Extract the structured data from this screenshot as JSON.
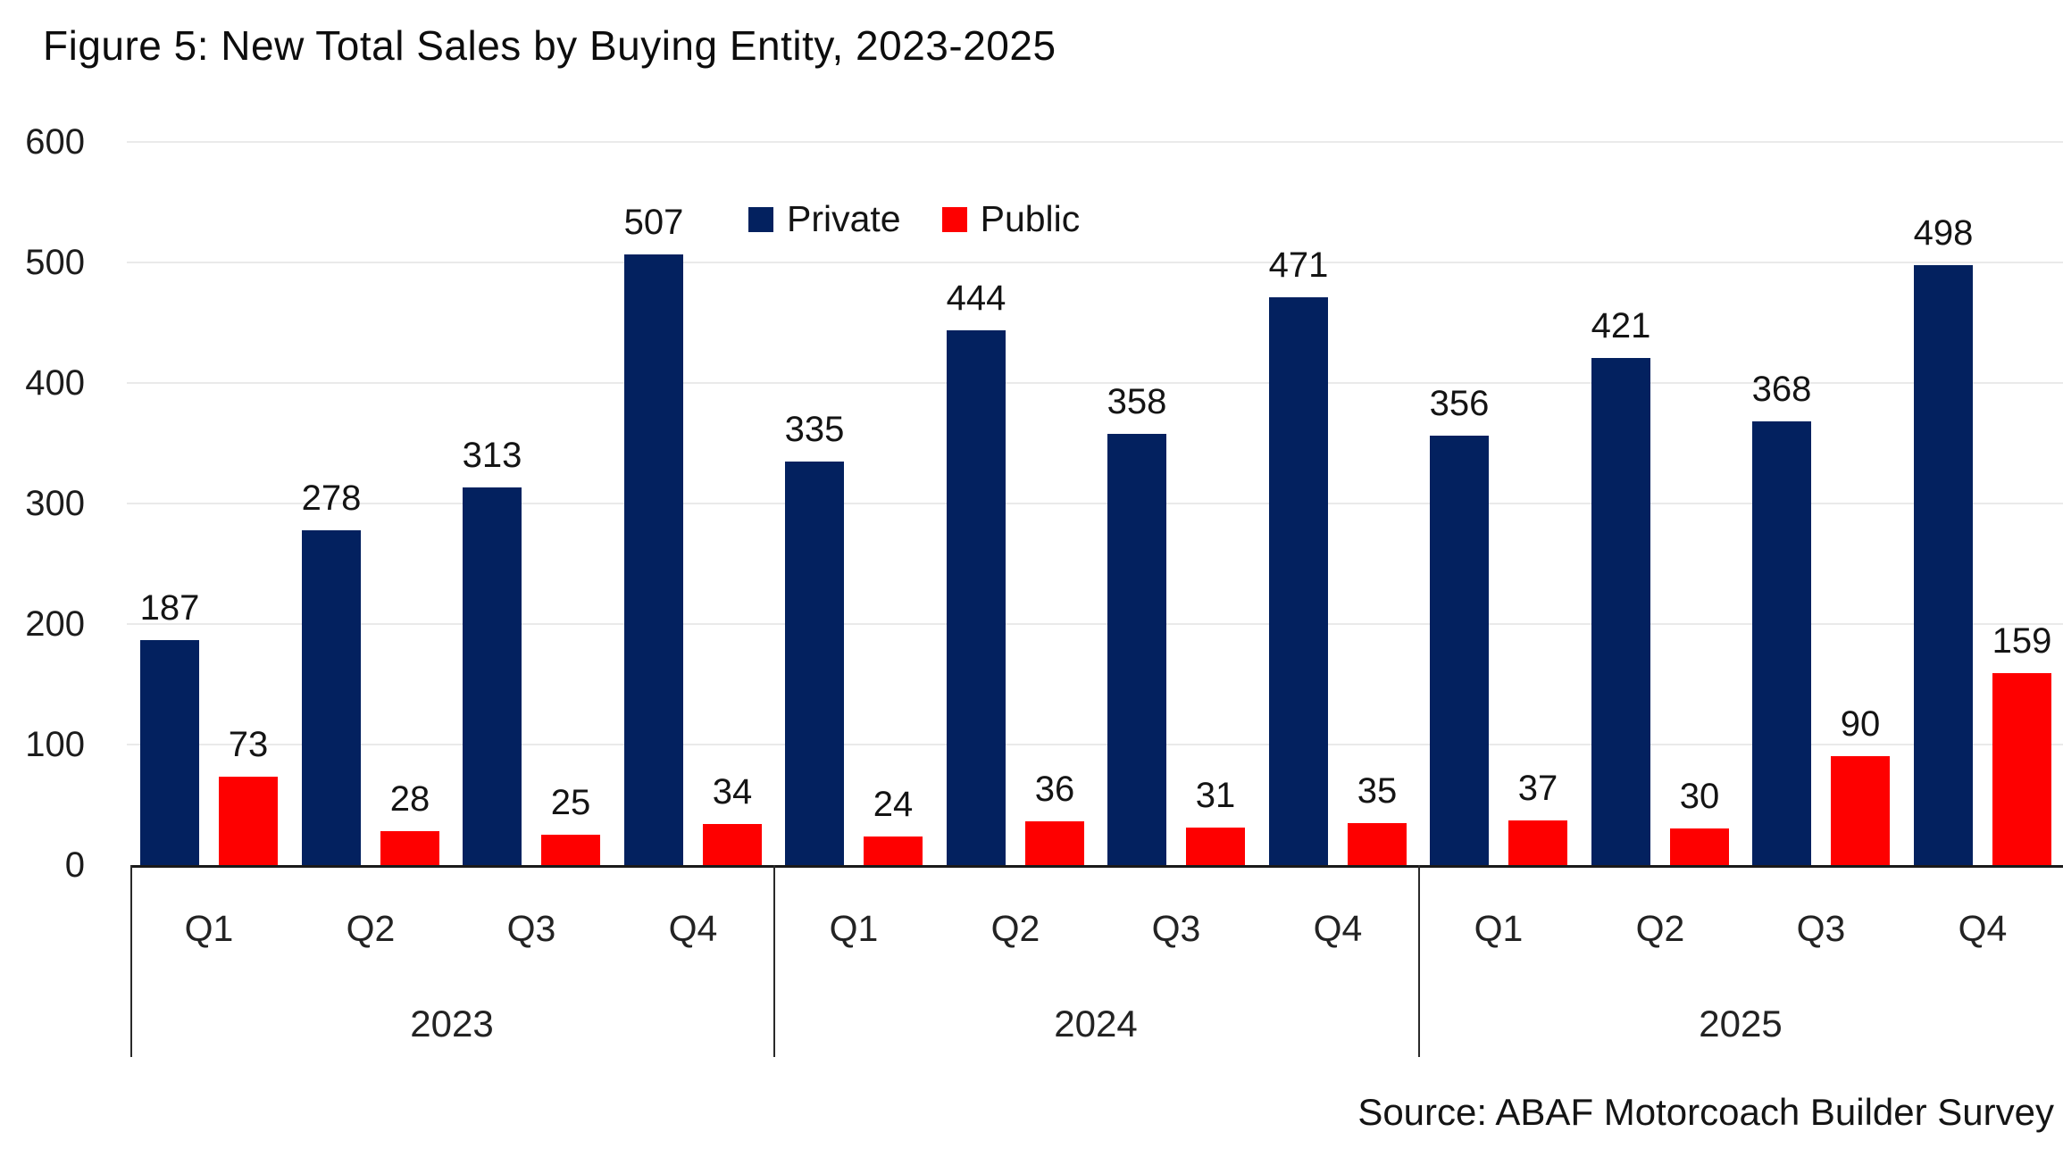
{
  "title": "Figure 5: New Total Sales by Buying Entity, 2023-2025",
  "source": "Source: ABAF Motorcoach Builder Survey",
  "colors": {
    "private": "#03215f",
    "public": "#fe0000",
    "gridline": "#eaeaea",
    "axis": "#1a1a1a",
    "text": "#141414"
  },
  "chart_data": {
    "type": "bar",
    "title": "Figure 5: New Total Sales by Buying Entity, 2023-2025",
    "xlabel": "",
    "ylabel": "",
    "ylim": [
      0,
      600
    ],
    "y_ticks": [
      0,
      100,
      200,
      300,
      400,
      500,
      600
    ],
    "grid": true,
    "legend_position": "top-center-inside",
    "groups": [
      {
        "label": "2023",
        "quarters": [
          "Q1",
          "Q2",
          "Q3",
          "Q4"
        ]
      },
      {
        "label": "2024",
        "quarters": [
          "Q1",
          "Q2",
          "Q3",
          "Q4"
        ]
      },
      {
        "label": "2025",
        "quarters": [
          "Q1",
          "Q2",
          "Q3",
          "Q4"
        ]
      }
    ],
    "categories": [
      "Q1",
      "Q2",
      "Q3",
      "Q4",
      "Q1",
      "Q2",
      "Q3",
      "Q4",
      "Q1",
      "Q2",
      "Q3",
      "Q4"
    ],
    "series": [
      {
        "name": "Private",
        "color": "#03215f",
        "values": [
          187,
          278,
          313,
          507,
          335,
          444,
          358,
          471,
          356,
          421,
          368,
          498
        ]
      },
      {
        "name": "Public",
        "color": "#fe0000",
        "values": [
          73,
          28,
          25,
          34,
          24,
          36,
          31,
          35,
          37,
          30,
          90,
          159
        ]
      }
    ]
  }
}
